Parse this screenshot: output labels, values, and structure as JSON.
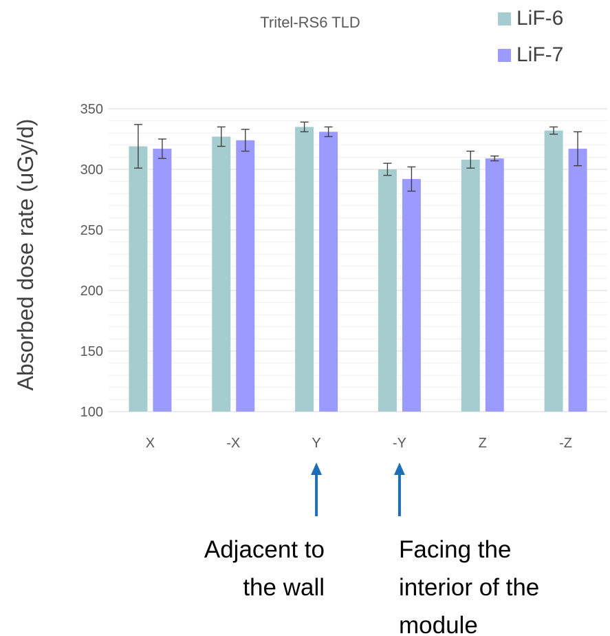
{
  "chart_data": {
    "type": "bar",
    "title": "Tritel-RS6 TLD",
    "ylabel": "Absorbed dose rate (uGy/d)",
    "xlabel": "",
    "categories": [
      "X",
      "-X",
      "Y",
      "-Y",
      "Z",
      "-Z"
    ],
    "ylim": [
      100,
      350
    ],
    "yticks": [
      100,
      150,
      200,
      250,
      300,
      350
    ],
    "grid": true,
    "legend_position": "top-right",
    "series": [
      {
        "name": "LiF-6",
        "color": "#A5CDCF",
        "values": [
          319,
          327,
          335,
          300,
          308,
          332
        ],
        "errors": [
          18,
          8,
          4,
          5,
          7,
          3
        ]
      },
      {
        "name": "LiF-7",
        "color": "#9A9AFF",
        "values": [
          317,
          324,
          331,
          292,
          309,
          317
        ],
        "errors": [
          8,
          9,
          4,
          10,
          2,
          14
        ]
      }
    ],
    "annotations": [
      {
        "category": "Y",
        "lines": [
          "Adjacent to",
          "the wall"
        ],
        "arrow_color": "#1E6DB6"
      },
      {
        "category": "-Y",
        "lines": [
          "Facing the",
          "interior of the",
          "module"
        ],
        "arrow_color": "#1E6DB6"
      }
    ]
  }
}
